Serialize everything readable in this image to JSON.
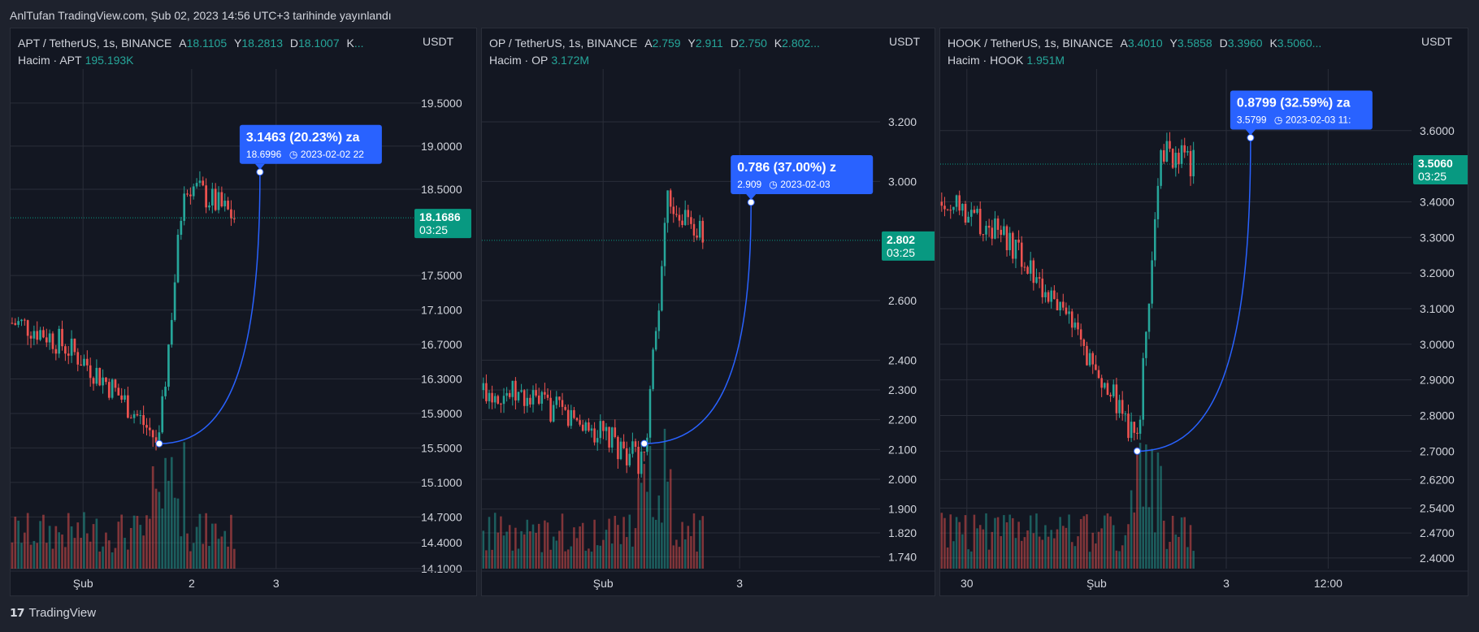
{
  "published": "AnlTufan TradingView.com, Şub 02, 2023 14:56 UTC+3 tarihinde yayınlandı",
  "footer": {
    "brand": "TradingView",
    "logo_icon": "tradingview-logo-icon"
  },
  "colors": {
    "bg": "#131722",
    "up": "#26a69a",
    "down": "#ef5350",
    "label_blue": "#2962ff",
    "price_tag": "#089981",
    "grid": "#2a2e39"
  },
  "chart_data": [
    {
      "type": "candlestick",
      "symbol": "APT / TetherUS, 1s, BINANCE",
      "ohlc": {
        "A_label": "A",
        "A": "18.1105",
        "Y_label": "Y",
        "Y": "18.2813",
        "D_label": "D",
        "D": "18.1007",
        "K_label": "K",
        "K": "..."
      },
      "volume_label": "Hacim · APT",
      "volume_value": "195.193K",
      "axis_unit": "USDT",
      "y_ticks": [
        "19.5000",
        "19.0000",
        "18.5000",
        "17.5000",
        "17.1000",
        "16.7000",
        "16.3000",
        "15.9000",
        "15.5000",
        "15.1000",
        "14.7000",
        "14.4000",
        "14.1000"
      ],
      "ylim": [
        14.1,
        19.8
      ],
      "x_ticks": [
        "Şub",
        "2",
        "3"
      ],
      "last_price": "18.1686",
      "countdown": "03:25",
      "projection": {
        "change": "3.1463 (20.23%) za",
        "detail": "18.6996",
        "date": "2023-02-02  22",
        "from": 15.55,
        "to": 18.7
      },
      "candles": {
        "start": 16.95,
        "low": 15.55,
        "peak": 18.6,
        "end": 18.15,
        "count": 72,
        "bottom_index": 47
      }
    },
    {
      "type": "candlestick",
      "symbol": "OP / TetherUS, 1s, BINANCE",
      "ohlc": {
        "A_label": "A",
        "A": "2.759",
        "Y_label": "Y",
        "Y": "2.911",
        "D_label": "D",
        "D": "2.750",
        "K_label": "K",
        "K": "2.802..."
      },
      "volume_label": "Hacim · OP",
      "volume_value": "3.172M",
      "axis_unit": "USDT",
      "y_ticks": [
        "3.200",
        "3.000",
        "2.600",
        "2.400",
        "2.300",
        "2.200",
        "2.100",
        "2.000",
        "1.900",
        "1.820",
        "1.740"
      ],
      "ylim": [
        1.7,
        3.35
      ],
      "x_ticks": [
        "Şub",
        "3"
      ],
      "last_price": "2.802",
      "countdown": "03:25",
      "projection": {
        "change": "0.786 (37.00%) z",
        "detail": "2.909",
        "date": "2023-02-03",
        "from": 2.12,
        "to": 2.93
      },
      "candles": {
        "start": 2.3,
        "low": 2.05,
        "peak": 2.95,
        "end": 2.8,
        "count": 76,
        "bottom_index": 55
      }
    },
    {
      "type": "candlestick",
      "symbol": "HOOK / TetherUS, 1s, BINANCE",
      "ohlc": {
        "A_label": "A",
        "A": "3.4010",
        "Y_label": "Y",
        "Y": "3.5858",
        "D_label": "D",
        "D": "3.3960",
        "K_label": "K",
        "K": "3.5060..."
      },
      "volume_label": "Hacim · HOOK",
      "volume_value": "1.951M",
      "axis_unit": "USDT",
      "y_ticks": [
        "3.6000",
        "3.4000",
        "3.3000",
        "3.2000",
        "3.1000",
        "3.0000",
        "2.9000",
        "2.8000",
        "2.7000",
        "2.6200",
        "2.5400",
        "2.4700",
        "2.4000"
      ],
      "ylim": [
        2.37,
        3.75
      ],
      "x_ticks": [
        "30",
        "Şub",
        "3",
        "12:00"
      ],
      "last_price": "3.5060",
      "countdown": "03:25",
      "projection": {
        "change": "0.8799 (32.59%) za",
        "detail": "3.5799",
        "date": "2023-02-03  11:",
        "from": 2.7,
        "to": 3.58
      },
      "candles": {
        "start": 3.4,
        "low": 2.72,
        "peak": 3.55,
        "end": 3.5,
        "count": 86,
        "bottom_index": 66
      }
    }
  ]
}
